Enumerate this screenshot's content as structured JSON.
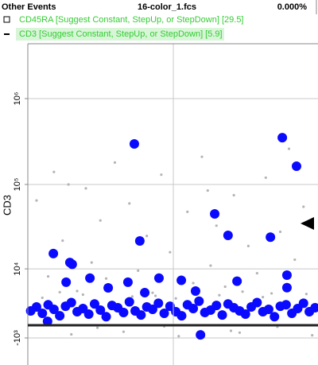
{
  "chart_data": {
    "type": "scatter",
    "population": "Other Events",
    "title": "16-color_1.fcs",
    "percent": "0.000%",
    "parameters": [
      {
        "label": "CD45RA [Suggest Constant, StepUp, or StepDown] [29.5]"
      },
      {
        "label": "CD3 [Suggest Constant, StepUp, or StepDown] [5.9]"
      }
    ],
    "ylabel": "CD3",
    "xlim": [
      0,
      100
    ],
    "ylim": [
      -4650,
      4350000
    ],
    "yticks": [
      {
        "value": -1000,
        "label": "-10³"
      },
      {
        "value": 10000,
        "label": "10⁴"
      },
      {
        "value": 100000,
        "label": "10⁵"
      },
      {
        "value": 1000000,
        "label": "10⁶"
      }
    ],
    "grid": true,
    "series": [
      {
        "color": "#b4b4b4",
        "x": [
          3,
          7,
          9,
          12,
          15,
          17,
          20,
          22,
          25,
          27,
          30,
          33,
          35,
          38,
          41,
          44,
          46,
          49,
          52,
          55,
          57,
          60,
          63,
          65,
          68,
          71,
          73,
          76,
          79,
          82,
          84,
          87,
          90,
          92,
          95,
          98,
          5,
          11,
          19,
          28,
          36,
          43,
          51,
          58,
          66,
          74,
          81,
          89,
          96,
          24,
          47,
          70,
          86,
          14,
          62
        ],
        "values": [
          65000,
          8000,
          140000,
          22000,
          -600,
          5000,
          90000,
          12000,
          38000,
          7500,
          180000,
          -300,
          60000,
          9500,
          25000,
          4200,
          130000,
          16000,
          -800,
          48000,
          6500,
          210000,
          11000,
          33000,
          5800,
          75000,
          -400,
          19000,
          8800,
          120000,
          4600,
          28000,
          260000,
          13000,
          55000,
          -700,
          3900,
          4800,
          4400,
          5200,
          4100,
          4700,
          3800,
          5400,
          4300,
          4900,
          4000,
          5100,
          4500,
          150,
          300,
          -200,
          250,
          100000,
          85000
        ]
      },
      {
        "color": "#0a0aff",
        "x": [
          36.7,
          87.7,
          92.6,
          64.4,
          69.0,
          83.6,
          38.6,
          8.8,
          14.5,
          15.3,
          89.3,
          21.4,
          13.2,
          45.2,
          34.5,
          52.9,
          72.1,
          27.7,
          89.3,
          57.8,
          40.3,
          59.5,
          6.8,
          1,
          3,
          5,
          7,
          9,
          11,
          13,
          15,
          17,
          19,
          21,
          23,
          25,
          27,
          29,
          31,
          33,
          35,
          37,
          39,
          41,
          43,
          45,
          47,
          49,
          51,
          53,
          55,
          57,
          59,
          61,
          63,
          65,
          67,
          69,
          71,
          73,
          75,
          77,
          79,
          81,
          83,
          85,
          87,
          89,
          91,
          93,
          95,
          97,
          99
        ],
        "values": [
          296700,
          351000,
          163000,
          45300,
          25400,
          24200,
          21800,
          15400,
          12000,
          11400,
          8300,
          7600,
          6700,
          7600,
          6700,
          7100,
          6900,
          5570,
          5600,
          5000,
          4730,
          -650,
          865,
          2100,
          2600,
          1800,
          2900,
          2300,
          1500,
          2700,
          3200,
          2000,
          2400,
          1700,
          3000,
          2200,
          1400,
          2800,
          2500,
          1900,
          3300,
          2100,
          1600,
          2600,
          2300,
          3100,
          1800,
          2700,
          2000,
          1500,
          2900,
          2400,
          3400,
          1900,
          2200,
          2800,
          1600,
          3000,
          2500,
          2100,
          1700,
          2600,
          3200,
          2000,
          2300,
          1400,
          2700,
          2900,
          1800,
          2400,
          3100,
          2000,
          2500
        ]
      }
    ]
  }
}
